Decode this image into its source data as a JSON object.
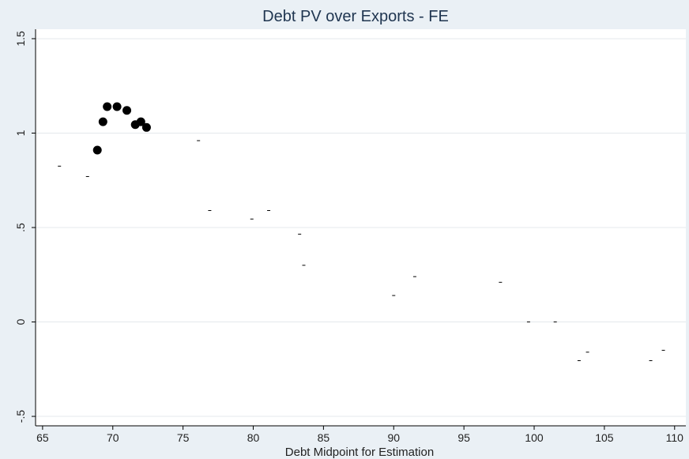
{
  "chart_data": {
    "type": "scatter",
    "title": "Debt PV over Exports - FE",
    "xlabel": "Debt Midpoint for Estimation",
    "ylabel": "",
    "xlim": [
      64.5,
      110.8
    ],
    "ylim": [
      -0.55,
      1.55
    ],
    "xticks": [
      65,
      70,
      75,
      80,
      85,
      90,
      95,
      100,
      105,
      110
    ],
    "yticks": [
      -0.5,
      0,
      0.5,
      1,
      1.5
    ],
    "ytick_labels": [
      "-.5",
      "0",
      ".5",
      "1",
      "1.5"
    ],
    "grid": true,
    "series": [
      {
        "marker": "large-dot",
        "color": "#000000",
        "x": [
          68.9,
          69.3,
          69.6,
          70.3,
          71.0,
          71.6,
          72.0,
          72.4
        ],
        "y": [
          0.91,
          1.06,
          1.14,
          1.14,
          1.12,
          1.045,
          1.06,
          1.03
        ]
      },
      {
        "marker": "small-dash",
        "color": "#000000",
        "x": [
          66.2,
          68.2,
          76.1,
          76.9,
          79.9,
          81.1,
          83.3,
          83.6,
          90.0,
          91.5,
          97.6,
          99.6,
          101.5,
          103.2,
          103.8,
          108.3,
          109.2
        ],
        "y": [
          0.825,
          0.77,
          0.96,
          0.59,
          0.545,
          0.59,
          0.465,
          0.3,
          0.14,
          0.24,
          0.21,
          0.0,
          0.0,
          -0.205,
          -0.16,
          -0.205,
          -0.15
        ]
      }
    ]
  }
}
